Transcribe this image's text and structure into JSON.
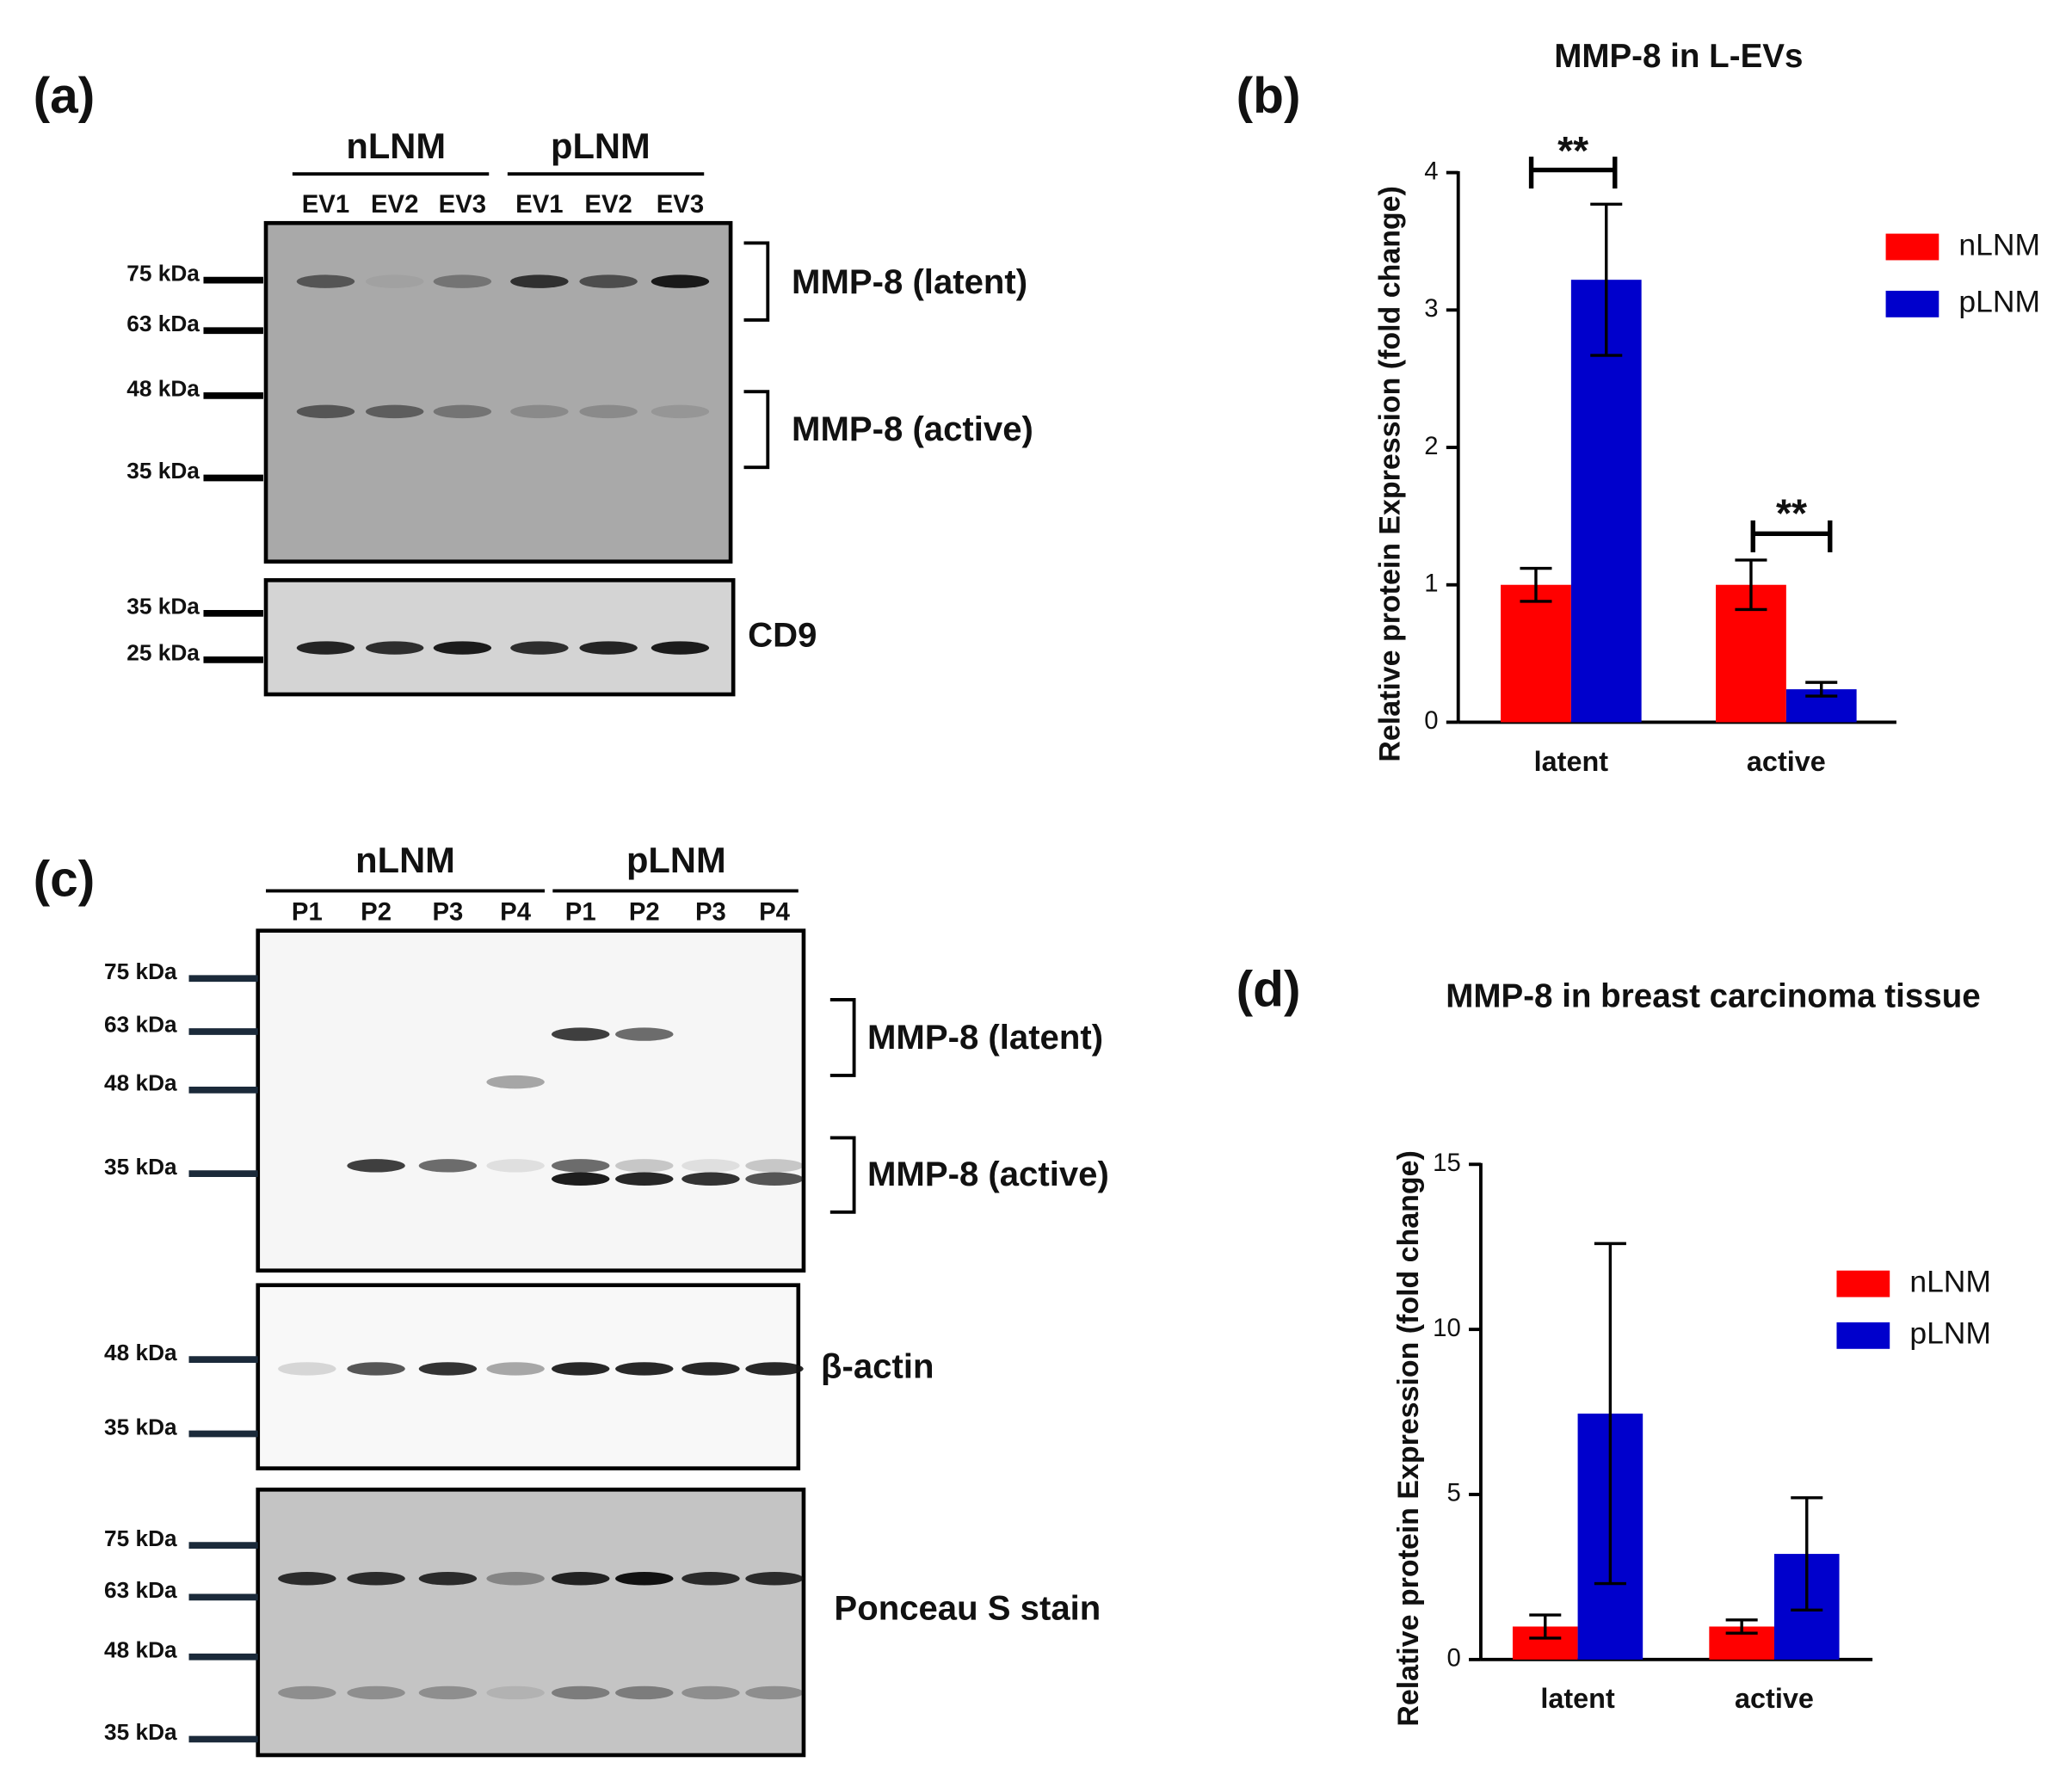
{
  "blots": {
    "a": {
      "panel_label": "(a)",
      "groups": [
        "nLNM",
        "pLNM"
      ],
      "lanes": [
        "EV1",
        "EV2",
        "EV3",
        "EV1",
        "EV2",
        "EV3"
      ],
      "markers": [
        "75 kDa",
        "63 kDa",
        "48 kDa",
        "35 kDa"
      ],
      "band_labels": [
        "MMP-8 (latent)",
        "MMP-8 (active)"
      ],
      "loading": [
        {
          "markers": [
            "35 kDa",
            "25 kDa"
          ],
          "label": "CD9"
        }
      ]
    },
    "c": {
      "panel_label": "(c)",
      "groups": [
        "nLNM",
        "pLNM"
      ],
      "lanes": [
        "P1",
        "P2",
        "P3",
        "P4",
        "P1",
        "P2",
        "P3",
        "P4"
      ],
      "markers": [
        "75 kDa",
        "63 kDa",
        "48 kDa",
        "35 kDa"
      ],
      "band_labels": [
        "MMP-8 (latent)",
        "MMP-8 (active)"
      ],
      "loading": [
        {
          "markers": [
            "48 kDa",
            "35 kDa"
          ],
          "label": "β-actin"
        },
        {
          "markers": [
            "75 kDa",
            "63 kDa",
            "48 kDa",
            "35 kDa"
          ],
          "label": "Ponceau S stain"
        }
      ]
    }
  },
  "chart_data": [
    {
      "type": "bar",
      "panel_label": "(b)",
      "title": "MMP-8 in L-EVs",
      "y_label": "Relative protein Expression (fold change)",
      "categories": [
        "latent",
        "active"
      ],
      "series": [
        {
          "name": "nLNM",
          "color": "#ff0000",
          "values": [
            1.0,
            1.0
          ],
          "errors": [
            0.12,
            0.18
          ]
        },
        {
          "name": "pLNM",
          "color": "#0000cc",
          "values": [
            3.22,
            0.24
          ],
          "errors": [
            0.55,
            0.05
          ]
        }
      ],
      "annotations": [
        "**",
        "**"
      ],
      "ylim": [
        0,
        4
      ],
      "yticks": [
        0,
        1,
        2,
        3,
        4
      ],
      "legend": "right"
    },
    {
      "type": "bar",
      "panel_label": "(d)",
      "title": "MMP-8 in breast carcinoma tissue",
      "y_label": "Relative protein Expression (fold change)",
      "categories": [
        "latent",
        "active"
      ],
      "series": [
        {
          "name": "nLNM",
          "color": "#ff0000",
          "values": [
            1.0,
            1.0
          ],
          "errors": [
            0.35,
            0.2
          ]
        },
        {
          "name": "pLNM",
          "color": "#0000cc",
          "values": [
            7.45,
            3.2
          ],
          "errors": [
            5.15,
            1.7
          ]
        }
      ],
      "ylim": [
        0,
        15
      ],
      "yticks": [
        0,
        5,
        10,
        15
      ],
      "legend": "right"
    }
  ]
}
